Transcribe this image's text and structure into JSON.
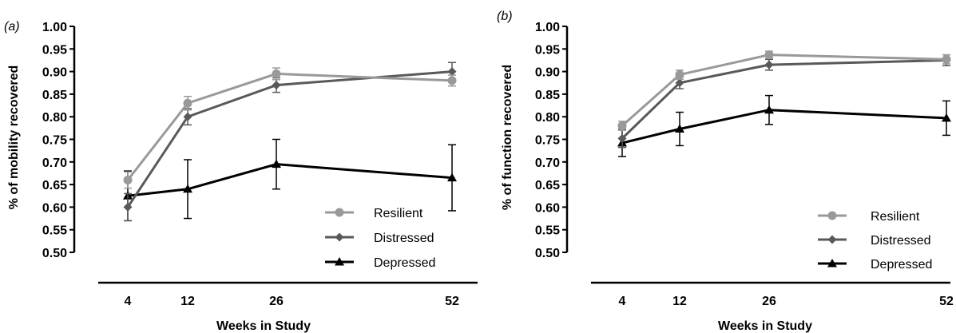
{
  "chart_data": [
    {
      "type": "line",
      "panel_label": "(a)",
      "xlabel": "Weeks in Study",
      "ylabel": "% of mobility recovered",
      "x": [
        4,
        12,
        26,
        52
      ],
      "x_ticks": [
        "4",
        "12",
        "26",
        "52"
      ],
      "ylim": [
        0.5,
        1.0
      ],
      "y_ticks": [
        "0.50",
        "0.55",
        "0.60",
        "0.65",
        "0.70",
        "0.75",
        "0.80",
        "0.85",
        "0.90",
        "0.95",
        "1.00"
      ],
      "legend_position": "bottom-right",
      "series": [
        {
          "name": "Resilient",
          "color": "#999999",
          "marker": "circle",
          "values": [
            0.66,
            0.83,
            0.895,
            0.88
          ],
          "error": [
            0.018,
            0.015,
            0.013,
            0.012
          ]
        },
        {
          "name": "Distressed",
          "color": "#595959",
          "marker": "diamond",
          "values": [
            0.6,
            0.8,
            0.87,
            0.9
          ],
          "error": [
            0.03,
            0.018,
            0.016,
            0.02
          ]
        },
        {
          "name": "Depressed",
          "color": "#000000",
          "marker": "triangle",
          "values": [
            0.625,
            0.64,
            0.695,
            0.665
          ],
          "error": [
            0.055,
            0.065,
            0.055,
            0.073
          ]
        }
      ]
    },
    {
      "type": "line",
      "panel_label": "(b)",
      "xlabel": "Weeks in Study",
      "ylabel": "% of function recovered",
      "x": [
        4,
        12,
        26,
        52
      ],
      "x_ticks": [
        "4",
        "12",
        "26",
        "52"
      ],
      "ylim": [
        0.5,
        1.0
      ],
      "y_ticks": [
        "0.50",
        "0.55",
        "0.60",
        "0.65",
        "0.70",
        "0.75",
        "0.80",
        "0.85",
        "0.90",
        "0.95",
        "1.00"
      ],
      "legend_position": "bottom-right",
      "series": [
        {
          "name": "Resilient",
          "color": "#999999",
          "marker": "circle",
          "values": [
            0.78,
            0.893,
            0.937,
            0.927
          ],
          "error": [
            0.01,
            0.01,
            0.008,
            0.01
          ]
        },
        {
          "name": "Distressed",
          "color": "#595959",
          "marker": "diamond",
          "values": [
            0.752,
            0.875,
            0.915,
            0.925
          ],
          "error": [
            0.02,
            0.013,
            0.012,
            0.012
          ]
        },
        {
          "name": "Depressed",
          "color": "#000000",
          "marker": "triangle",
          "values": [
            0.742,
            0.773,
            0.815,
            0.797
          ],
          "error": [
            0.03,
            0.037,
            0.032,
            0.038
          ]
        }
      ]
    }
  ]
}
